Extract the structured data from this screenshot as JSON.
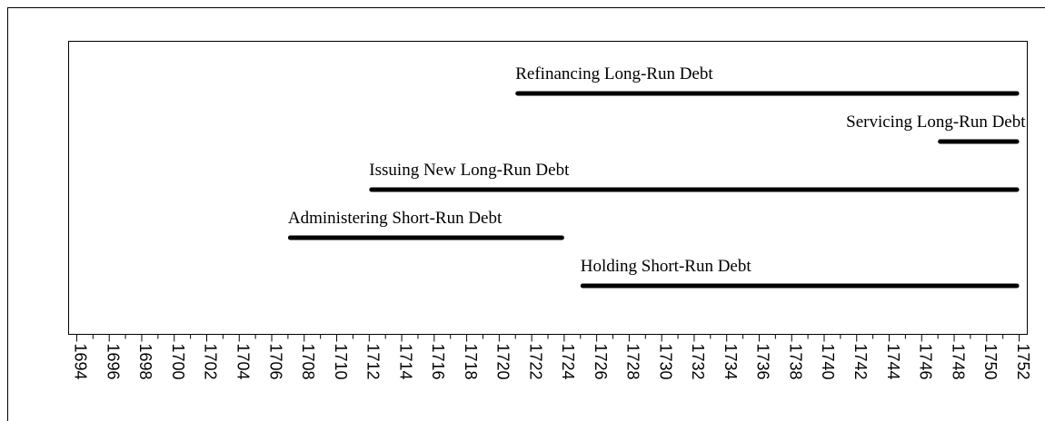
{
  "chart_data": {
    "type": "timeline",
    "series": [
      {
        "name": "Refinancing Long-Run Debt",
        "start": 1721,
        "end": 1752
      },
      {
        "name": "Servicing Long-Run Debt",
        "start": 1747,
        "end": 1752
      },
      {
        "name": "Issuing New Long-Run Debt",
        "start": 1712,
        "end": 1752
      },
      {
        "name": "Administering Short-Run Debt",
        "start": 1707,
        "end": 1724
      },
      {
        "name": "Holding Short-Run Debt",
        "start": 1725,
        "end": 1752
      }
    ],
    "color": "#000000",
    "xlim": [
      1693.5,
      1752.5
    ],
    "xticks": [
      1694,
      1696,
      1698,
      1700,
      1702,
      1704,
      1706,
      1708,
      1710,
      1712,
      1714,
      1716,
      1718,
      1720,
      1722,
      1724,
      1726,
      1728,
      1730,
      1732,
      1734,
      1736,
      1738,
      1740,
      1742,
      1744,
      1746,
      1748,
      1750,
      1752
    ],
    "xminorticks": [
      1695,
      1697,
      1699,
      1701,
      1703,
      1705,
      1707,
      1709,
      1711,
      1713,
      1715,
      1717,
      1719,
      1721,
      1723,
      1725,
      1727,
      1729,
      1731,
      1733,
      1735,
      1737,
      1739,
      1741,
      1743,
      1745,
      1747,
      1749,
      1751
    ]
  }
}
